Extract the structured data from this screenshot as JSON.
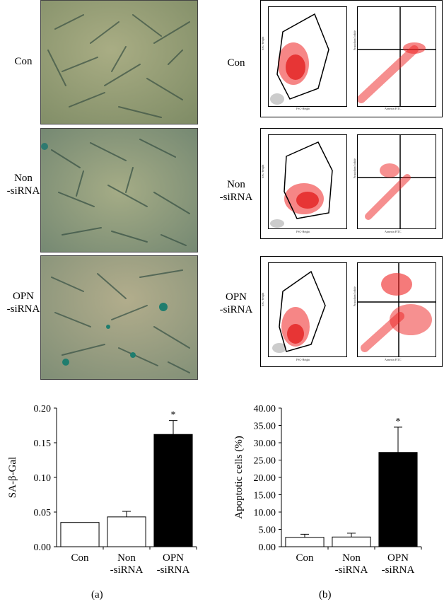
{
  "figure": {
    "rows": [
      {
        "label_line1": "Con",
        "label_line2": ""
      },
      {
        "label_line1": "Non",
        "label_line2": "-siRNA"
      },
      {
        "label_line1": "OPN",
        "label_line2": "-siRNA"
      }
    ],
    "flow_axes": {
      "ssc": "SSC-Height",
      "fsc": "FSC-Height",
      "pi": "Propidium Iodide",
      "annexin": "Annexin FITC"
    },
    "panel_a": "(a)",
    "panel_b": "(b)"
  },
  "chart_data": [
    {
      "type": "bar",
      "ylabel": "SA-β-Gal",
      "categories": [
        [
          "Con"
        ],
        [
          "Non",
          "-siRNA"
        ],
        [
          "OPN",
          "-siRNA"
        ]
      ],
      "values": [
        0.035,
        0.043,
        0.162
      ],
      "errors": [
        0,
        0.008,
        0.02
      ],
      "fills": [
        "#ffffff",
        "#ffffff",
        "#000000"
      ],
      "significance": [
        "",
        "",
        "*"
      ],
      "ylim": [
        0,
        0.2
      ],
      "yticks": [
        "0.00",
        "0.05",
        "0.10",
        "0.15",
        "0.20"
      ]
    },
    {
      "type": "bar",
      "ylabel": "Apoptotic cells (%)",
      "categories": [
        [
          "Con"
        ],
        [
          "Non",
          "-siRNA"
        ],
        [
          "OPN",
          "-siRNA"
        ]
      ],
      "values": [
        2.7,
        2.8,
        27.2
      ],
      "errors": [
        0.9,
        1.1,
        7.3
      ],
      "fills": [
        "#ffffff",
        "#ffffff",
        "#000000"
      ],
      "significance": [
        "",
        "",
        "*"
      ],
      "ylim": [
        0,
        40
      ],
      "yticks": [
        "0.00",
        "5.00",
        "10.00",
        "15.00",
        "20.00",
        "25.00",
        "30.00",
        "35.00",
        "40.00"
      ]
    }
  ]
}
